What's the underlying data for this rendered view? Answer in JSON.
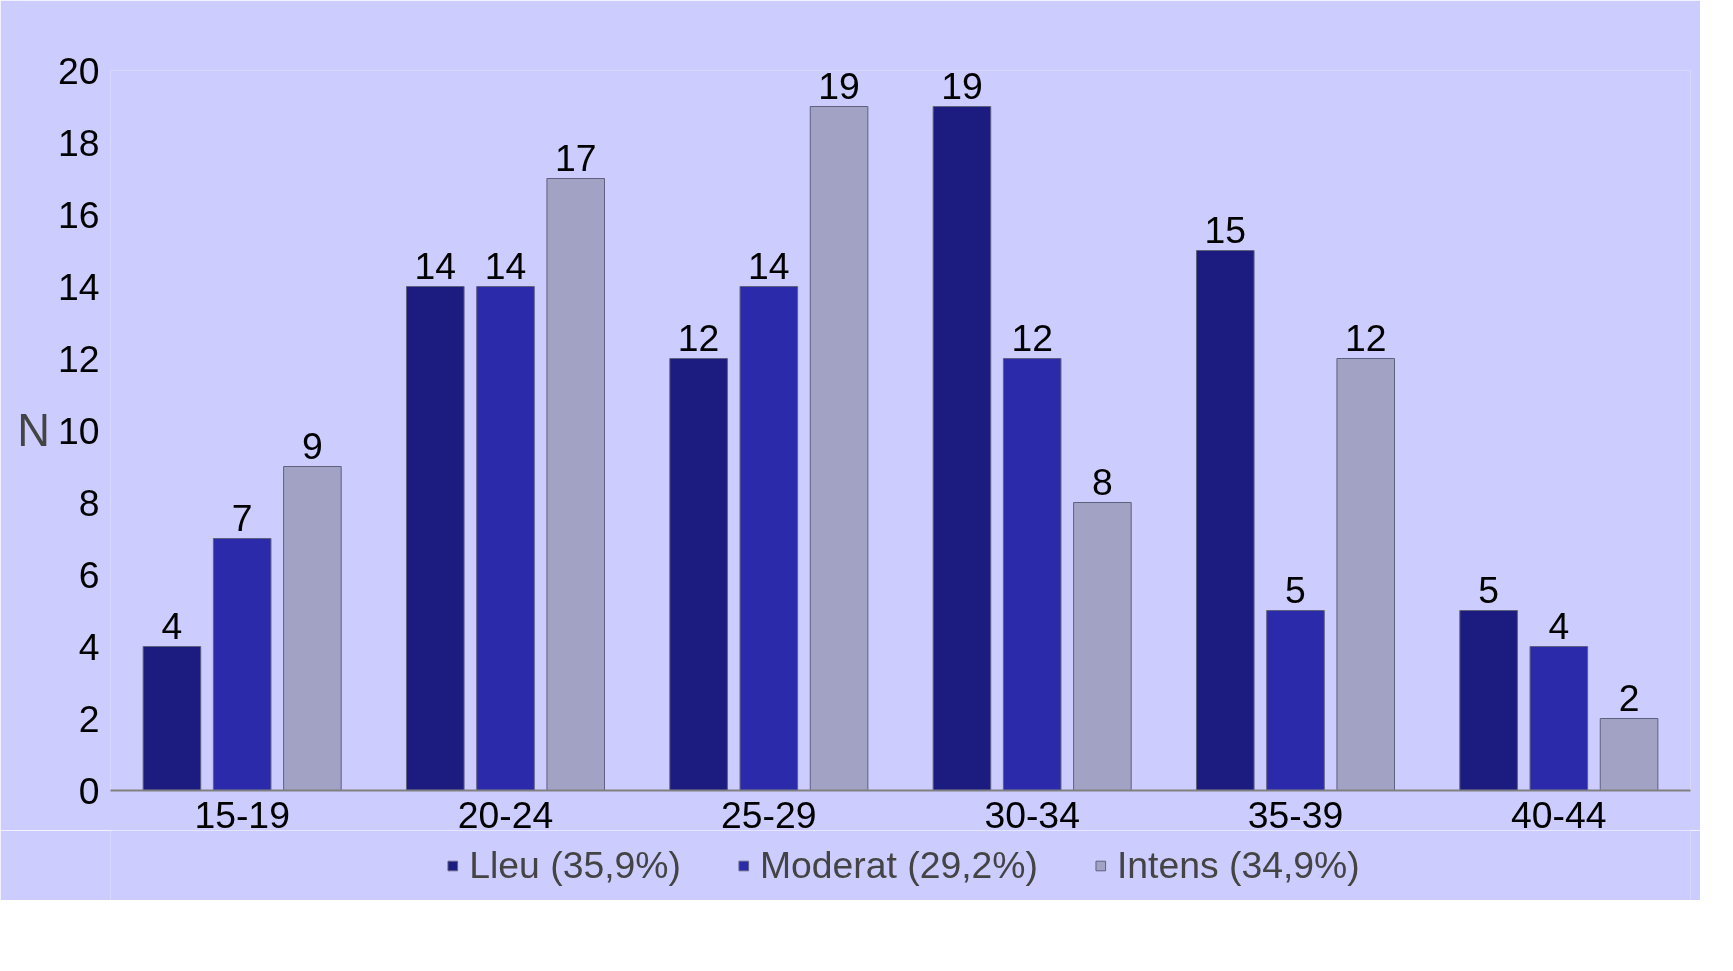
{
  "chart_data": {
    "type": "bar",
    "ylabel": "N",
    "categories": [
      "15-19",
      "20-24",
      "25-29",
      "30-34",
      "35-39",
      "40-44"
    ],
    "series": [
      {
        "name": "Lleu (35,9%)",
        "color": "#1c1c80",
        "values": [
          4,
          14,
          12,
          19,
          15,
          5
        ]
      },
      {
        "name": "Moderat (29,2%)",
        "color": "#2a2aaa",
        "values": [
          7,
          14,
          14,
          12,
          5,
          4
        ]
      },
      {
        "name": "Intens (34,9%)",
        "color": "#a2a2c4",
        "values": [
          9,
          17,
          19,
          8,
          12,
          2
        ]
      }
    ],
    "ylim": [
      0,
      20
    ],
    "yticks": [
      0,
      2,
      4,
      6,
      8,
      10,
      12,
      14,
      16,
      18,
      20
    ],
    "data_labels": true,
    "grid": false,
    "legend": "bottom"
  }
}
